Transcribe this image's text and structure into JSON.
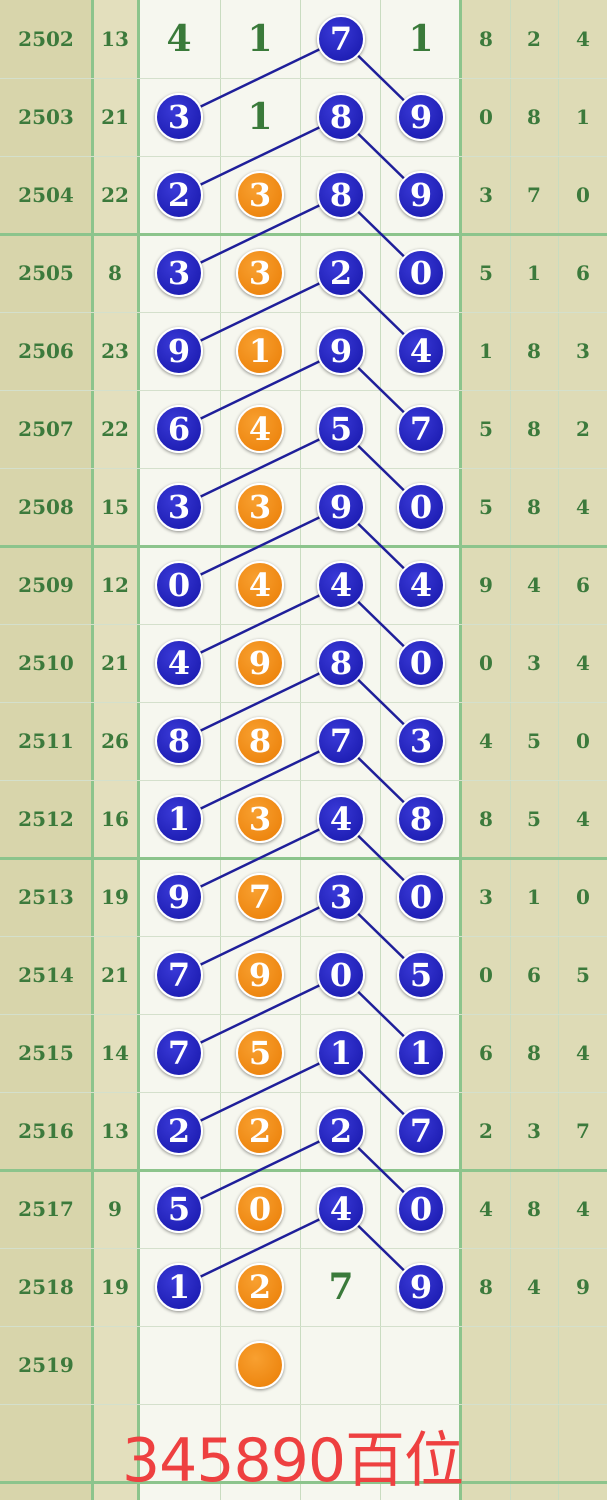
{
  "colors": {
    "blue_ball": "#1d1db8",
    "orange_ball": "#f08a10",
    "text_green": "#3a7a3a",
    "link_line": "#1f1f9a",
    "footer_red": "#ee4040"
  },
  "rows": [
    {
      "period": "2502",
      "sum": "13",
      "cells": [
        {
          "v": "4",
          "t": "plain"
        },
        {
          "v": "1",
          "t": "plain"
        },
        {
          "v": "7",
          "t": "blue"
        },
        {
          "v": "1",
          "t": "plain"
        }
      ],
      "tail": [
        "8",
        "2",
        "4"
      ]
    },
    {
      "period": "2503",
      "sum": "21",
      "cells": [
        {
          "v": "3",
          "t": "blue"
        },
        {
          "v": "1",
          "t": "plain"
        },
        {
          "v": "8",
          "t": "blue"
        },
        {
          "v": "9",
          "t": "blue"
        }
      ],
      "tail": [
        "0",
        "8",
        "1"
      ]
    },
    {
      "period": "2504",
      "sum": "22",
      "cells": [
        {
          "v": "2",
          "t": "blue"
        },
        {
          "v": "3",
          "t": "orange"
        },
        {
          "v": "8",
          "t": "blue"
        },
        {
          "v": "9",
          "t": "blue"
        }
      ],
      "tail": [
        "3",
        "7",
        "0"
      ]
    },
    {
      "period": "2505",
      "sum": "8",
      "cells": [
        {
          "v": "3",
          "t": "blue"
        },
        {
          "v": "3",
          "t": "orange"
        },
        {
          "v": "2",
          "t": "blue"
        },
        {
          "v": "0",
          "t": "blue"
        }
      ],
      "tail": [
        "5",
        "1",
        "6"
      ]
    },
    {
      "period": "2506",
      "sum": "23",
      "cells": [
        {
          "v": "9",
          "t": "blue"
        },
        {
          "v": "1",
          "t": "orange"
        },
        {
          "v": "9",
          "t": "blue"
        },
        {
          "v": "4",
          "t": "blue"
        }
      ],
      "tail": [
        "1",
        "8",
        "3"
      ]
    },
    {
      "period": "2507",
      "sum": "22",
      "cells": [
        {
          "v": "6",
          "t": "blue"
        },
        {
          "v": "4",
          "t": "orange"
        },
        {
          "v": "5",
          "t": "blue"
        },
        {
          "v": "7",
          "t": "blue"
        }
      ],
      "tail": [
        "5",
        "8",
        "2"
      ]
    },
    {
      "period": "2508",
      "sum": "15",
      "cells": [
        {
          "v": "3",
          "t": "blue"
        },
        {
          "v": "3",
          "t": "orange"
        },
        {
          "v": "9",
          "t": "blue"
        },
        {
          "v": "0",
          "t": "blue"
        }
      ],
      "tail": [
        "5",
        "8",
        "4"
      ]
    },
    {
      "period": "2509",
      "sum": "12",
      "cells": [
        {
          "v": "0",
          "t": "blue"
        },
        {
          "v": "4",
          "t": "orange"
        },
        {
          "v": "4",
          "t": "blue"
        },
        {
          "v": "4",
          "t": "blue"
        }
      ],
      "tail": [
        "9",
        "4",
        "6"
      ]
    },
    {
      "period": "2510",
      "sum": "21",
      "cells": [
        {
          "v": "4",
          "t": "blue"
        },
        {
          "v": "9",
          "t": "orange"
        },
        {
          "v": "8",
          "t": "blue"
        },
        {
          "v": "0",
          "t": "blue"
        }
      ],
      "tail": [
        "0",
        "3",
        "4"
      ]
    },
    {
      "period": "2511",
      "sum": "26",
      "cells": [
        {
          "v": "8",
          "t": "blue"
        },
        {
          "v": "8",
          "t": "orange"
        },
        {
          "v": "7",
          "t": "blue"
        },
        {
          "v": "3",
          "t": "blue"
        }
      ],
      "tail": [
        "4",
        "5",
        "0"
      ]
    },
    {
      "period": "2512",
      "sum": "16",
      "cells": [
        {
          "v": "1",
          "t": "blue"
        },
        {
          "v": "3",
          "t": "orange"
        },
        {
          "v": "4",
          "t": "blue"
        },
        {
          "v": "8",
          "t": "blue"
        }
      ],
      "tail": [
        "8",
        "5",
        "4"
      ]
    },
    {
      "period": "2513",
      "sum": "19",
      "cells": [
        {
          "v": "9",
          "t": "blue"
        },
        {
          "v": "7",
          "t": "orange"
        },
        {
          "v": "3",
          "t": "blue"
        },
        {
          "v": "0",
          "t": "blue"
        }
      ],
      "tail": [
        "3",
        "1",
        "0"
      ]
    },
    {
      "period": "2514",
      "sum": "21",
      "cells": [
        {
          "v": "7",
          "t": "blue"
        },
        {
          "v": "9",
          "t": "orange"
        },
        {
          "v": "0",
          "t": "blue"
        },
        {
          "v": "5",
          "t": "blue"
        }
      ],
      "tail": [
        "0",
        "6",
        "5"
      ]
    },
    {
      "period": "2515",
      "sum": "14",
      "cells": [
        {
          "v": "7",
          "t": "blue"
        },
        {
          "v": "5",
          "t": "orange"
        },
        {
          "v": "1",
          "t": "blue"
        },
        {
          "v": "1",
          "t": "blue"
        }
      ],
      "tail": [
        "6",
        "8",
        "4"
      ]
    },
    {
      "period": "2516",
      "sum": "13",
      "cells": [
        {
          "v": "2",
          "t": "blue"
        },
        {
          "v": "2",
          "t": "orange"
        },
        {
          "v": "2",
          "t": "blue"
        },
        {
          "v": "7",
          "t": "blue"
        }
      ],
      "tail": [
        "2",
        "3",
        "7"
      ]
    },
    {
      "period": "2517",
      "sum": "9",
      "cells": [
        {
          "v": "5",
          "t": "blue"
        },
        {
          "v": "0",
          "t": "orange"
        },
        {
          "v": "4",
          "t": "blue"
        },
        {
          "v": "0",
          "t": "blue"
        }
      ],
      "tail": [
        "4",
        "8",
        "4"
      ]
    },
    {
      "period": "2518",
      "sum": "19",
      "cells": [
        {
          "v": "1",
          "t": "blue"
        },
        {
          "v": "2",
          "t": "orange"
        },
        {
          "v": "7",
          "t": "plain"
        },
        {
          "v": "9",
          "t": "blue"
        }
      ],
      "tail": [
        "8",
        "4",
        "9"
      ]
    },
    {
      "period": "2519",
      "sum": "",
      "cells": [
        {
          "v": "",
          "t": "empty"
        },
        {
          "v": "",
          "t": "orange"
        },
        {
          "v": "",
          "t": "empty"
        },
        {
          "v": "",
          "t": "empty"
        }
      ],
      "tail": [
        "",
        "",
        ""
      ]
    }
  ],
  "footer": {
    "text": "345890百位"
  }
}
